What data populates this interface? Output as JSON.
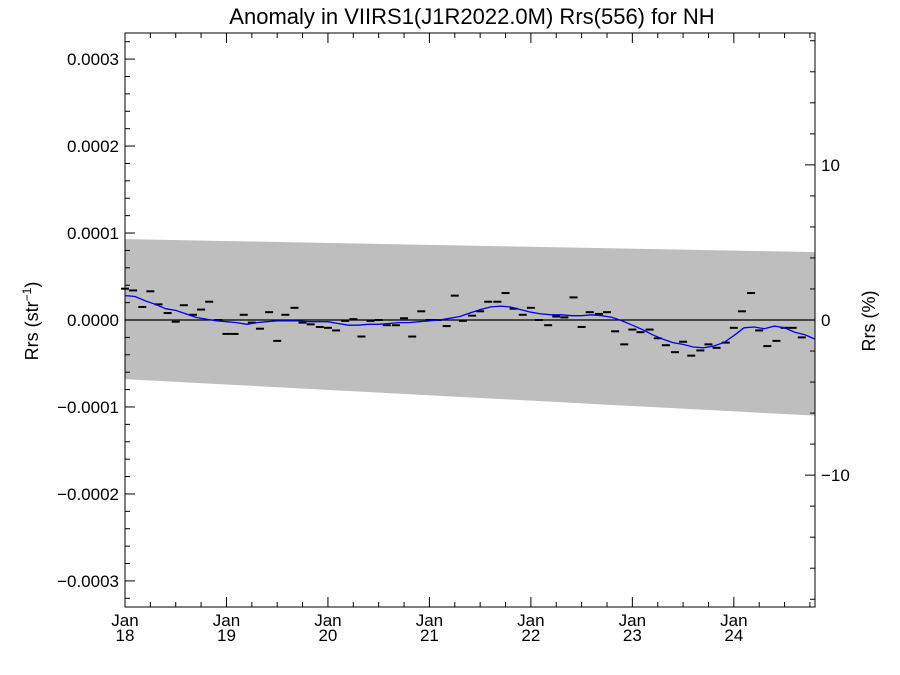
{
  "chart_data": {
    "type": "scatter",
    "title": "Anomaly in VIIRS1(J1R2022.0M) Rrs(556) for NH",
    "ylabel_left": {
      "base": "Rrs (str",
      "sup": "−1",
      "tail": ")"
    },
    "ylabel_right": "Rrs (%)",
    "xlim": [
      2018.0,
      2024.8
    ],
    "ylim": [
      -0.00033,
      0.00033
    ],
    "y2lim": [
      -18.5,
      18.5
    ],
    "grid": false,
    "legend": "none",
    "left_ticks": [
      {
        "value": 0.0003,
        "label": "0.0003"
      },
      {
        "value": 0.0002,
        "label": "0.0002"
      },
      {
        "value": 0.0001,
        "label": "0.0001"
      },
      {
        "value": 0.0,
        "label": "0.0000"
      },
      {
        "value": -0.0001,
        "label": "−0.0001"
      },
      {
        "value": -0.0002,
        "label": "−0.0002"
      },
      {
        "value": -0.0003,
        "label": "−0.0003"
      }
    ],
    "right_ticks": [
      {
        "value": 10,
        "label": "10"
      },
      {
        "value": 0,
        "label": "0"
      },
      {
        "value": -10,
        "label": "−10"
      }
    ],
    "x_ticks": [
      {
        "value": 2018,
        "month": "Jan",
        "year": "18"
      },
      {
        "value": 2019,
        "month": "Jan",
        "year": "19"
      },
      {
        "value": 2020,
        "month": "Jan",
        "year": "20"
      },
      {
        "value": 2021,
        "month": "Jan",
        "year": "21"
      },
      {
        "value": 2022,
        "month": "Jan",
        "year": "22"
      },
      {
        "value": 2023,
        "month": "Jan",
        "year": "23"
      },
      {
        "value": 2024,
        "month": "Jan",
        "year": "24"
      }
    ],
    "band": {
      "x": [
        2018.0,
        2024.8
      ],
      "upper": [
        9.3e-05,
        7.8e-05
      ],
      "lower": [
        -6.8e-05,
        -0.00011
      ]
    },
    "monthly": {
      "x": [
        2018.0,
        2018.08,
        2018.17,
        2018.25,
        2018.33,
        2018.42,
        2018.5,
        2018.58,
        2018.67,
        2018.75,
        2018.83,
        2018.92,
        2019.0,
        2019.08,
        2019.17,
        2019.25,
        2019.33,
        2019.42,
        2019.5,
        2019.58,
        2019.67,
        2019.75,
        2019.83,
        2019.92,
        2020.0,
        2020.08,
        2020.17,
        2020.25,
        2020.33,
        2020.42,
        2020.5,
        2020.58,
        2020.67,
        2020.75,
        2020.83,
        2020.92,
        2021.0,
        2021.08,
        2021.17,
        2021.25,
        2021.33,
        2021.42,
        2021.5,
        2021.58,
        2021.67,
        2021.75,
        2021.83,
        2021.92,
        2022.0,
        2022.08,
        2022.17,
        2022.25,
        2022.33,
        2022.42,
        2022.5,
        2022.58,
        2022.67,
        2022.75,
        2022.83,
        2022.92,
        2023.0,
        2023.08,
        2023.17,
        2023.25,
        2023.33,
        2023.42,
        2023.5,
        2023.58,
        2023.67,
        2023.75,
        2023.83,
        2023.92,
        2024.0,
        2024.08,
        2024.17,
        2024.25,
        2024.33,
        2024.42,
        2024.5,
        2024.58,
        2024.67
      ],
      "y": [
        3.6e-05,
        3.4e-05,
        1.5e-05,
        3.3e-05,
        1.8e-05,
        8e-06,
        -2e-06,
        1.7e-05,
        6e-06,
        1.2e-05,
        2.1e-05,
        0.0,
        -1.6e-05,
        -1.6e-05,
        6e-06,
        -3e-06,
        -1e-05,
        9e-06,
        -2.4e-05,
        6e-06,
        1.4e-05,
        -3e-06,
        -5e-06,
        -8e-06,
        -9e-06,
        -1.2e-05,
        -1e-06,
        1e-06,
        -1.9e-05,
        -1e-06,
        0.0,
        -6e-06,
        -6e-06,
        2e-06,
        -1.9e-05,
        1e-05,
        0.0,
        0.0,
        -7e-06,
        2.8e-05,
        -1e-06,
        5e-06,
        1e-05,
        2.1e-05,
        2.1e-05,
        3.1e-05,
        1.3e-05,
        6e-06,
        1.4e-05,
        0.0,
        -6e-06,
        4e-06,
        3e-06,
        2.6e-05,
        -8e-06,
        9e-06,
        7e-06,
        9e-06,
        -1.3e-05,
        -2.8e-05,
        -1.1e-05,
        -1.4e-05,
        -1.1e-05,
        -2.1e-05,
        -2.9e-05,
        -3.7e-05,
        -2.5e-05,
        -4.1e-05,
        -3.5e-05,
        -2.8e-05,
        -3.2e-05,
        -2.6e-05,
        -9e-06,
        1e-05,
        3.1e-05,
        -1.2e-05,
        -3e-05,
        -2.4e-05,
        -9e-06,
        -9e-06,
        -2e-05
      ]
    },
    "smooth": {
      "x": [
        2018.0,
        2018.1,
        2018.2,
        2018.3,
        2018.4,
        2018.5,
        2018.6,
        2018.7,
        2018.8,
        2018.9,
        2019.0,
        2019.1,
        2019.2,
        2019.3,
        2019.4,
        2019.5,
        2019.6,
        2019.7,
        2019.8,
        2019.9,
        2020.0,
        2020.1,
        2020.2,
        2020.3,
        2020.4,
        2020.5,
        2020.6,
        2020.7,
        2020.8,
        2020.9,
        2021.0,
        2021.1,
        2021.2,
        2021.3,
        2021.4,
        2021.5,
        2021.6,
        2021.7,
        2021.8,
        2021.9,
        2022.0,
        2022.1,
        2022.2,
        2022.3,
        2022.4,
        2022.5,
        2022.6,
        2022.7,
        2022.8,
        2022.9,
        2023.0,
        2023.1,
        2023.2,
        2023.3,
        2023.4,
        2023.5,
        2023.6,
        2023.7,
        2023.8,
        2023.9,
        2024.0,
        2024.1,
        2024.2,
        2024.3,
        2024.4,
        2024.5,
        2024.6,
        2024.7,
        2024.8
      ],
      "y": [
        2.8e-05,
        2.7e-05,
        2.2e-05,
        1.8e-05,
        1.3e-05,
        1.1e-05,
        7e-06,
        3e-06,
        1e-06,
        -1e-06,
        -2e-06,
        -3e-06,
        -5e-06,
        -3e-06,
        -2e-06,
        -1e-06,
        -1e-06,
        -1e-06,
        -2e-06,
        -2e-06,
        -2e-06,
        -4e-06,
        -6e-06,
        -6e-06,
        -5e-06,
        -5e-06,
        -4e-06,
        -3e-06,
        -3e-06,
        -2e-06,
        -1e-06,
        0.0,
        2e-06,
        4e-06,
        8e-06,
        1.2e-05,
        1.5e-05,
        1.6e-05,
        1.5e-05,
        1.2e-05,
        9e-06,
        7e-06,
        6e-06,
        6e-06,
        5e-06,
        5e-06,
        6e-06,
        5e-06,
        3e-06,
        -1e-06,
        -6e-06,
        -1.1e-05,
        -1.7e-05,
        -2.2e-05,
        -2.6e-05,
        -2.8e-05,
        -3.1e-05,
        -3.2e-05,
        -3e-05,
        -2.6e-05,
        -1.8e-05,
        -9e-06,
        -8e-06,
        -1e-05,
        -7e-06,
        -9e-06,
        -1.4e-05,
        -1.7e-05,
        -2.2e-05
      ]
    }
  }
}
